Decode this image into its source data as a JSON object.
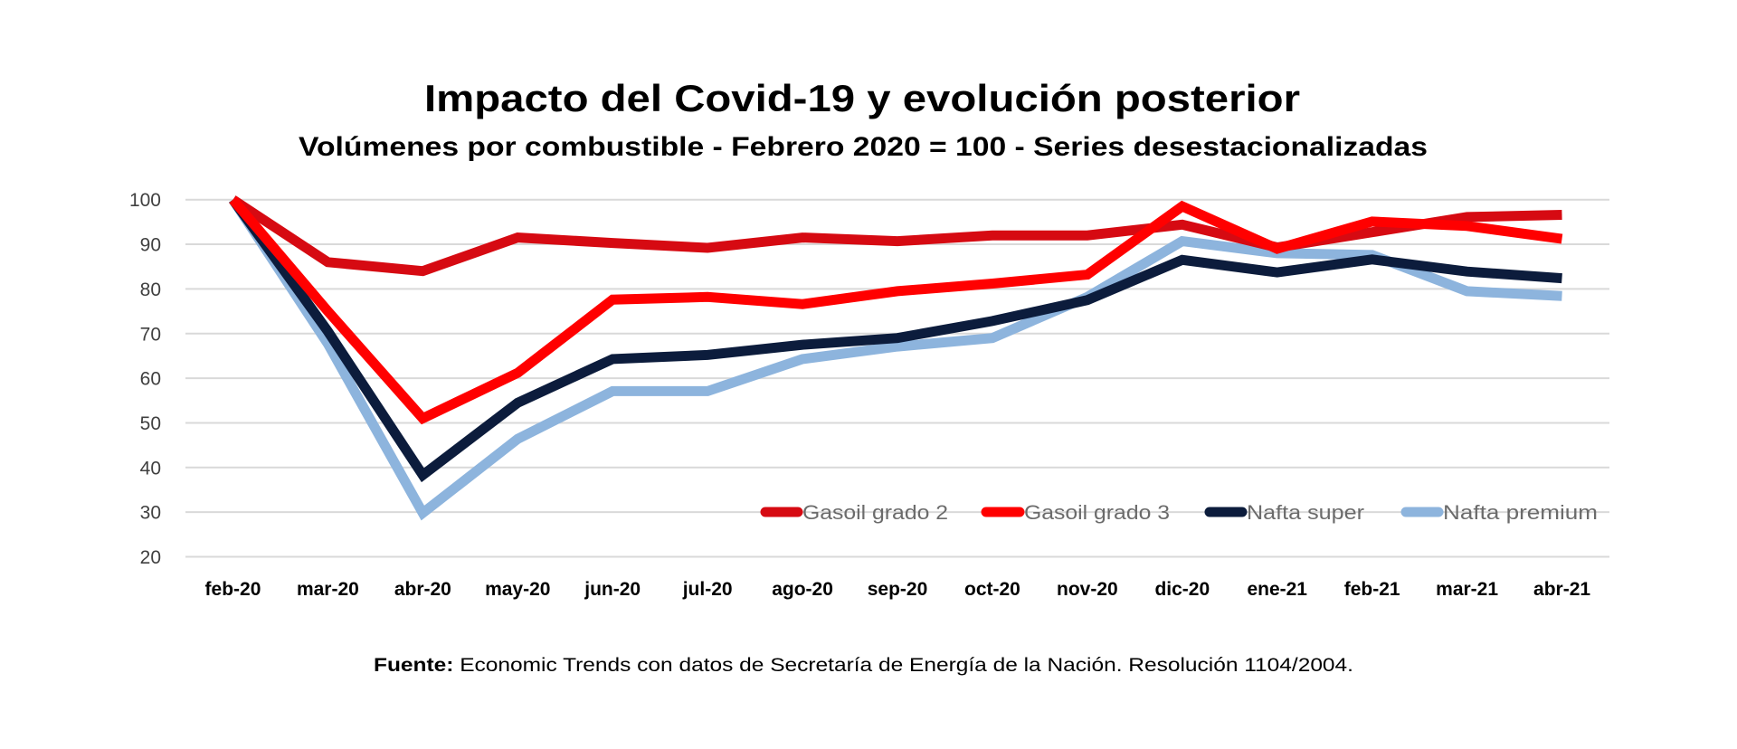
{
  "chart_data": {
    "type": "line",
    "title": "Impacto del Covid-19 y evolución posterior",
    "subtitle": "Volúmenes por combustible - Febrero 2020 = 100 - Series desestacionalizadas",
    "xlabel": "",
    "ylabel": "",
    "ylim": [
      20,
      100
    ],
    "yticks": [
      "100",
      "90",
      "80",
      "70",
      "60",
      "50",
      "40",
      "30",
      "20"
    ],
    "ytick_values": [
      100,
      90,
      80,
      70,
      60,
      50,
      40,
      30,
      20
    ],
    "grid": true,
    "legend_position": "bottom-right",
    "categories": [
      "feb-20",
      "mar-20",
      "abr-20",
      "may-20",
      "jun-20",
      "jul-20",
      "ago-20",
      "sep-20",
      "oct-20",
      "nov-20",
      "dic-20",
      "ene-21",
      "feb-21",
      "mar-21",
      "abr-21"
    ],
    "series": [
      {
        "name": "Gasoil grado 2",
        "color": "#d60a12",
        "values": [
          100,
          86,
          84,
          91.5,
          90.3,
          89.2,
          91.5,
          90.7,
          92,
          92,
          94.4,
          89.3,
          92.7,
          96.1,
          96.6
        ]
      },
      {
        "name": "Gasoil grado 3",
        "color": "#ff0000",
        "values": [
          100,
          75,
          51,
          61.2,
          77.6,
          78.2,
          76.6,
          79.5,
          81.2,
          83.2,
          98.5,
          89,
          95.1,
          94.1,
          91.2
        ]
      },
      {
        "name": "Nafta super",
        "color": "#0c1c3c",
        "values": [
          100,
          70.5,
          38.3,
          54.5,
          64.3,
          65.2,
          67.5,
          69,
          72.8,
          77.5,
          86.5,
          83.7,
          86.6,
          83.9,
          82.4
        ]
      },
      {
        "name": "Nafta premium",
        "color": "#8db4dd",
        "values": [
          100,
          67.7,
          29.8,
          46.4,
          57.1,
          57.1,
          64.3,
          67.1,
          69,
          78.2,
          90.7,
          88,
          87.6,
          79.5,
          78.4
        ]
      }
    ],
    "source_label": "Fuente:",
    "source_text": " Economic Trends con datos de Secretaría de Energía de la Nación. Resolución 1104/2004."
  }
}
